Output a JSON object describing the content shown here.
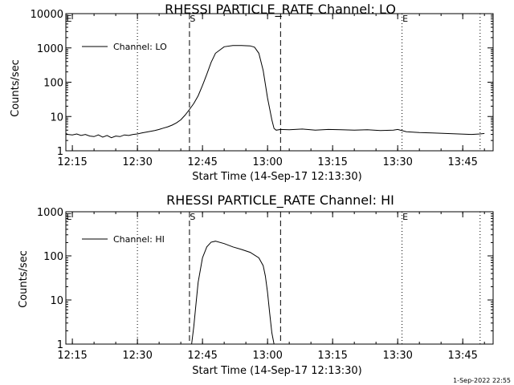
{
  "footer": {
    "timestamp": "1-Sep-2022 22:55"
  },
  "chart_data": [
    {
      "type": "line",
      "title": "RHESSI PARTICLE_RATE Channel: LO",
      "xlabel": "Start Time (14-Sep-17 12:13:30)",
      "ylabel": "Counts/sec",
      "yscale": "log",
      "ylim": [
        1,
        10000
      ],
      "xlim": [
        "12:13:30",
        "13:52:00"
      ],
      "x_ticks": [
        "12:15",
        "12:30",
        "12:45",
        "13:00",
        "13:15",
        "13:30",
        "13:45"
      ],
      "y_ticks": [
        "1",
        "10",
        "100",
        "1000",
        "10000"
      ],
      "legend_position": "top-left",
      "series": [
        {
          "name": "Channel: LO",
          "x": [
            "12:13:30",
            "12:14:00",
            "12:15:00",
            "12:16:00",
            "12:17:00",
            "12:18:00",
            "12:19:00",
            "12:20:00",
            "12:21:00",
            "12:22:00",
            "12:23:00",
            "12:24:00",
            "12:25:00",
            "12:26:00",
            "12:27:00",
            "12:28:00",
            "12:29:00",
            "12:30:00",
            "12:31:00",
            "12:32:00",
            "12:33:00",
            "12:34:00",
            "12:35:00",
            "12:36:00",
            "12:37:00",
            "12:38:00",
            "12:39:00",
            "12:40:00",
            "12:41:00",
            "12:42:00",
            "12:43:00",
            "12:44:00",
            "12:45:00",
            "12:46:00",
            "12:47:00",
            "12:48:00",
            "12:50:00",
            "12:52:00",
            "12:54:00",
            "12:56:00",
            "12:57:00",
            "12:58:00",
            "12:59:00",
            "13:00:00",
            "13:01:00",
            "13:01:30",
            "13:02:00",
            "13:03:00",
            "13:05:00",
            "13:08:00",
            "13:11:00",
            "13:14:00",
            "13:17:00",
            "13:20:00",
            "13:23:00",
            "13:26:00",
            "13:29:00",
            "13:30:00",
            "13:32:00",
            "13:35:00",
            "13:38:00",
            "13:41:00",
            "13:44:00",
            "13:47:00",
            "13:49:00",
            "13:50:00"
          ],
          "y": [
            3.2,
            3.0,
            2.9,
            3.1,
            2.8,
            3.0,
            2.7,
            2.6,
            2.9,
            2.5,
            2.8,
            2.4,
            2.7,
            2.6,
            2.9,
            2.8,
            3.0,
            3.1,
            3.3,
            3.5,
            3.7,
            3.9,
            4.2,
            4.6,
            5.0,
            5.6,
            6.5,
            8,
            11,
            16,
            24,
            40,
            80,
            170,
            380,
            700,
            1080,
            1180,
            1180,
            1150,
            1050,
            700,
            220,
            35,
            8,
            4.5,
            4.0,
            4.2,
            4.1,
            4.3,
            4.0,
            4.2,
            4.1,
            4.0,
            4.1,
            3.9,
            4.0,
            4.2,
            3.6,
            3.4,
            3.3,
            3.2,
            3.1,
            3.0,
            3.1,
            3.2
          ]
        }
      ],
      "vlines_dotted": [
        "12:13:30",
        "12:30:00",
        "13:31:00",
        "13:49:00"
      ],
      "vlines_dashed": [
        "12:42:00",
        "13:03:00"
      ],
      "markers": [
        {
          "label": "S",
          "time": "12:42:00"
        },
        {
          "label": "E",
          "time": "13:31:00"
        },
        {
          "label": "E",
          "time": "12:13:30"
        }
      ]
    },
    {
      "type": "line",
      "title": "RHESSI PARTICLE_RATE Channel: HI",
      "xlabel": "Start Time (14-Sep-17 12:13:30)",
      "ylabel": "Counts/sec",
      "yscale": "log",
      "ylim": [
        1,
        1000
      ],
      "xlim": [
        "12:13:30",
        "13:52:00"
      ],
      "x_ticks": [
        "12:15",
        "12:30",
        "12:45",
        "13:00",
        "13:15",
        "13:30",
        "13:45"
      ],
      "y_ticks": [
        "1",
        "10",
        "100",
        "1000"
      ],
      "legend_position": "top-left",
      "series": [
        {
          "name": "Channel: HI",
          "x": [
            "12:42:30",
            "12:43:00",
            "12:43:30",
            "12:44:00",
            "12:45:00",
            "12:46:00",
            "12:47:00",
            "12:48:00",
            "12:50:00",
            "12:52:00",
            "12:54:00",
            "12:56:00",
            "12:58:00",
            "12:59:00",
            "12:59:30",
            "13:00:00",
            "13:00:30",
            "13:01:00",
            "13:01:30"
          ],
          "y": [
            1.0,
            2.5,
            8,
            25,
            90,
            160,
            205,
            215,
            190,
            160,
            140,
            120,
            90,
            60,
            35,
            15,
            5,
            1.8,
            1.0
          ]
        }
      ],
      "vlines_dotted": [
        "12:13:30",
        "12:30:00",
        "13:31:00",
        "13:49:00"
      ],
      "vlines_dashed": [
        "12:42:00",
        "13:03:00"
      ],
      "markers": [
        {
          "label": "S",
          "time": "12:42:00"
        },
        {
          "label": "E",
          "time": "13:31:00"
        },
        {
          "label": "E",
          "time": "12:13:30"
        }
      ]
    }
  ]
}
